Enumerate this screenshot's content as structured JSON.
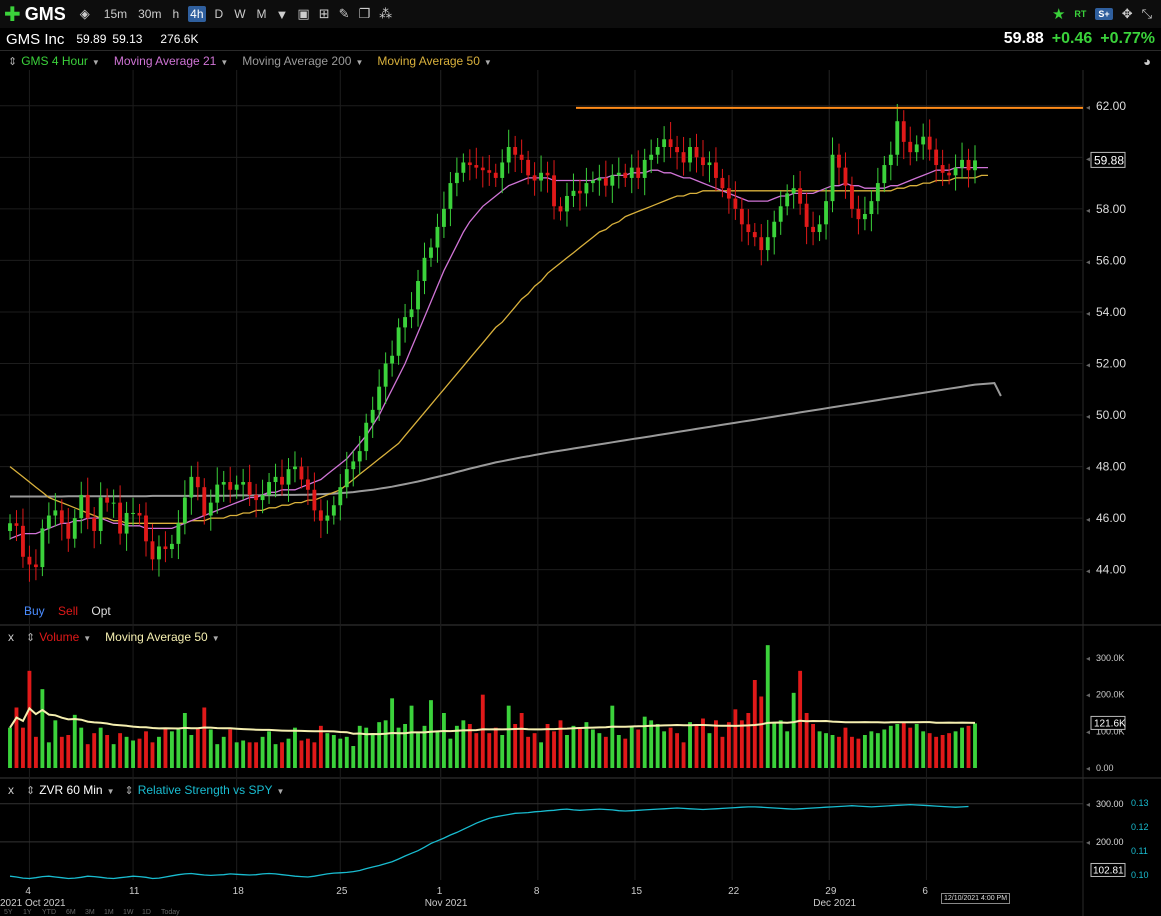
{
  "toolbar": {
    "ticker": "GMS",
    "timeframes": [
      "15m",
      "30m",
      "h",
      "4h",
      "D",
      "W",
      "M"
    ],
    "active_timeframe": "4h",
    "right_icons": [
      "star-icon",
      "rt-badge-icon",
      "s-plus-icon",
      "move-icon",
      "expand-icon"
    ],
    "rt_label": "RT",
    "s_label": "S+"
  },
  "quote": {
    "company": "GMS Inc",
    "high": "59.89",
    "low": "59.13",
    "volume": "276.6K",
    "last": "59.88",
    "change": "+0.46",
    "change_pct": "+0.77%"
  },
  "legend": {
    "series": "GMS 4 Hour",
    "ma21": "Moving Average 21",
    "ma200": "Moving Average 200",
    "ma50": "Moving Average 50"
  },
  "colors": {
    "up": "#3bd23b",
    "down": "#e01919",
    "ma21": "#d074d6",
    "ma50": "#d9b13c",
    "ma200": "#9a9a9a",
    "resistance": "#ff8c1a",
    "rs_line": "#19bcd0",
    "volume_ma": "#f5efb0"
  },
  "bso": {
    "buy": "Buy",
    "sell": "Sell",
    "opt": "Opt"
  },
  "volume_panel": {
    "close": "x",
    "label": "Volume",
    "ma_label": "Moving Average 50",
    "last_label": "121.6K"
  },
  "rs_panel": {
    "close": "x",
    "label": "ZVR 60 Min",
    "rs_label": "Relative Strength vs SPY",
    "last_label": "102.81"
  },
  "timestamp": "12/10/2021 4:00 PM",
  "chart_data": [
    {
      "type": "candlestick",
      "title": "GMS 4 Hour",
      "y_ticks": [
        "62.00",
        "60.00",
        "58.00",
        "56.00",
        "54.00",
        "52.00",
        "50.00",
        "48.00",
        "46.00",
        "44.00"
      ],
      "y_range": [
        42.9,
        63.0
      ],
      "last_price_label": "59.88",
      "resistance_level": 61.92,
      "x_ticks": [
        {
          "label": "2021 Oct 2021",
          "idx": 0
        },
        {
          "label": "4",
          "idx": 3
        },
        {
          "label": "11",
          "idx": 19
        },
        {
          "label": "18",
          "idx": 35
        },
        {
          "label": "25",
          "idx": 51
        },
        {
          "label": "1",
          "idx": 66.5
        },
        {
          "label": "Nov 2021",
          "idx": 66.5
        },
        {
          "label": "8",
          "idx": 81.5
        },
        {
          "label": "15",
          "idx": 96.5
        },
        {
          "label": "22",
          "idx": 111.5
        },
        {
          "label": "29",
          "idx": 126.5
        },
        {
          "label": "Dec 2021",
          "idx": 126.5
        },
        {
          "label": "6",
          "idx": 141.5
        }
      ],
      "bottom_zoom_labels": [
        "5Y",
        "1Y",
        "YTD",
        "6M",
        "3M",
        "1M",
        "1W",
        "1D",
        "Today"
      ],
      "closes": [
        45.8,
        45.7,
        44.5,
        44.2,
        44.1,
        45.6,
        46.1,
        46.3,
        45.8,
        45.2,
        46.0,
        46.9,
        46.0,
        45.5,
        46.8,
        46.6,
        46.6,
        45.4,
        46.2,
        46.2,
        46.1,
        45.1,
        44.4,
        44.9,
        44.8,
        45.0,
        45.8,
        46.8,
        47.6,
        47.2,
        46.1,
        46.6,
        47.3,
        47.4,
        47.1,
        47.3,
        47.4,
        46.9,
        46.7,
        46.9,
        47.4,
        47.6,
        47.3,
        47.9,
        48.0,
        47.5,
        47.1,
        46.3,
        45.9,
        46.1,
        46.5,
        47.2,
        47.9,
        48.2,
        48.6,
        49.7,
        50.2,
        51.1,
        52.0,
        52.3,
        53.4,
        53.8,
        54.1,
        55.2,
        56.1,
        56.5,
        57.3,
        58.0,
        59.0,
        59.4,
        59.8,
        59.7,
        59.6,
        59.5,
        59.4,
        59.2,
        59.8,
        60.4,
        60.1,
        59.9,
        59.3,
        59.1,
        59.4,
        59.3,
        58.1,
        57.9,
        58.5,
        58.7,
        58.6,
        59.0,
        59.1,
        59.2,
        58.9,
        59.3,
        59.4,
        59.2,
        59.6,
        59.2,
        59.9,
        60.1,
        60.4,
        60.7,
        60.4,
        60.2,
        59.8,
        60.4,
        60.0,
        59.7,
        59.8,
        59.2,
        58.8,
        58.4,
        58.0,
        57.4,
        57.1,
        56.9,
        56.4,
        56.9,
        57.5,
        58.1,
        58.6,
        58.8,
        58.2,
        57.3,
        57.1,
        57.4,
        58.3,
        60.1,
        59.6,
        58.9,
        58.0,
        57.6,
        57.8,
        58.3,
        59.0,
        59.7,
        60.1,
        61.4,
        60.6,
        60.2,
        60.5,
        60.8,
        60.3,
        59.7,
        59.4,
        59.3,
        59.6,
        59.9,
        59.5,
        59.88
      ],
      "ma21": [
        45.2,
        45.3,
        45.4,
        45.4,
        45.4,
        45.5,
        45.6,
        45.7,
        45.8,
        45.8,
        45.9,
        45.9,
        46.0,
        46.0,
        46.0,
        45.9,
        45.8,
        45.8,
        45.7,
        45.7,
        45.7,
        45.6,
        45.6,
        45.6,
        45.6,
        45.6,
        45.7,
        45.8,
        45.9,
        46.0,
        46.1,
        46.2,
        46.3,
        46.4,
        46.5,
        46.6,
        46.7,
        46.8,
        46.8,
        46.9,
        47.0,
        47.0,
        47.1,
        47.1,
        47.1,
        47.2,
        47.3,
        47.4,
        47.5,
        47.7,
        47.9,
        48.1,
        48.3,
        48.6,
        48.9,
        49.2,
        49.6,
        50.0,
        50.5,
        51.0,
        51.5,
        52.0,
        52.6,
        53.2,
        53.8,
        54.4,
        55.0,
        55.6,
        56.1,
        56.6,
        57.1,
        57.5,
        57.8,
        58.1,
        58.3,
        58.5,
        58.7,
        58.9,
        59.0,
        59.1,
        59.2,
        59.2,
        59.2,
        59.2,
        59.1,
        59.1,
        59.1,
        59.1,
        59.1,
        59.1,
        59.1,
        59.2,
        59.2,
        59.3,
        59.3,
        59.3,
        59.4,
        59.4,
        59.4,
        59.5,
        59.5,
        59.4,
        59.4,
        59.3,
        59.2,
        59.2,
        59.1,
        59.0,
        58.9,
        58.8,
        58.7,
        58.6,
        58.5,
        58.4,
        58.3,
        58.3,
        58.3,
        58.3,
        58.4,
        58.5,
        58.5,
        58.6,
        58.6,
        58.6,
        58.6,
        58.7,
        58.8,
        58.9,
        58.9,
        59.0,
        58.9,
        58.9,
        58.8,
        58.8,
        58.8,
        58.8,
        58.9,
        58.9,
        59.0,
        59.1,
        59.2,
        59.3,
        59.4,
        59.5,
        59.5,
        59.5,
        59.6,
        59.6,
        59.6,
        59.6,
        59.6,
        59.6
      ],
      "ma50": [
        48.0,
        47.8,
        47.6,
        47.4,
        47.2,
        47.0,
        46.8,
        46.7,
        46.6,
        46.5,
        46.4,
        46.3,
        46.2,
        46.1,
        46.0,
        46.0,
        45.9,
        45.9,
        45.8,
        45.8,
        45.8,
        45.8,
        45.8,
        45.8,
        45.8,
        45.8,
        45.8,
        45.8,
        45.9,
        45.9,
        45.9,
        46.0,
        46.0,
        46.0,
        46.1,
        46.1,
        46.2,
        46.2,
        46.3,
        46.3,
        46.4,
        46.4,
        46.5,
        46.5,
        46.6,
        46.6,
        46.7,
        46.7,
        46.8,
        46.9,
        47.0,
        47.1,
        47.3,
        47.5,
        47.7,
        47.9,
        48.1,
        48.3,
        48.5,
        48.7,
        48.9,
        49.2,
        49.5,
        49.8,
        50.1,
        50.4,
        50.7,
        51.0,
        51.3,
        51.6,
        51.9,
        52.2,
        52.5,
        52.8,
        53.1,
        53.4,
        53.6,
        53.9,
        54.2,
        54.5,
        54.7,
        55.0,
        55.2,
        55.5,
        55.7,
        55.9,
        56.1,
        56.3,
        56.5,
        56.7,
        56.9,
        57.1,
        57.2,
        57.4,
        57.5,
        57.7,
        57.8,
        57.9,
        58.0,
        58.1,
        58.2,
        58.3,
        58.4,
        58.5,
        58.5,
        58.6,
        58.6,
        58.7,
        58.7,
        58.7,
        58.7,
        58.7,
        58.7,
        58.7,
        58.7,
        58.7,
        58.7,
        58.7,
        58.7,
        58.7,
        58.7,
        58.7,
        58.7,
        58.7,
        58.7,
        58.7,
        58.7,
        58.7,
        58.7,
        58.7,
        58.7,
        58.7,
        58.7,
        58.7,
        58.7,
        58.7,
        58.7,
        58.8,
        58.8,
        58.9,
        58.9,
        59.0,
        59.0,
        59.1,
        59.1,
        59.1,
        59.2,
        59.2,
        59.2,
        59.2,
        59.3,
        59.3
      ],
      "ma200": [
        46.84,
        46.84,
        46.84,
        46.84,
        46.84,
        46.84,
        46.84,
        46.84,
        46.84,
        46.85,
        46.85,
        46.85,
        46.85,
        46.85,
        46.85,
        46.85,
        46.85,
        46.85,
        46.85,
        46.85,
        46.85,
        46.85,
        46.86,
        46.86,
        46.86,
        46.86,
        46.86,
        46.86,
        46.86,
        46.86,
        46.87,
        46.87,
        46.87,
        46.87,
        46.87,
        46.88,
        46.88,
        46.88,
        46.88,
        46.89,
        46.89,
        46.89,
        46.9,
        46.9,
        46.9,
        46.91,
        46.91,
        46.92,
        46.93,
        46.94,
        46.95,
        46.97,
        46.99,
        47.01,
        47.04,
        47.07,
        47.1,
        47.14,
        47.18,
        47.22,
        47.27,
        47.32,
        47.37,
        47.42,
        47.48,
        47.54,
        47.6,
        47.66,
        47.72,
        47.79,
        47.85,
        47.92,
        47.98,
        48.04,
        48.1,
        48.16,
        48.21,
        48.26,
        48.31,
        48.36,
        48.4,
        48.45,
        48.49,
        48.54,
        48.58,
        48.62,
        48.66,
        48.7,
        48.74,
        48.78,
        48.82,
        48.86,
        48.9,
        48.94,
        48.98,
        49.02,
        49.06,
        49.1,
        49.14,
        49.18,
        49.22,
        49.26,
        49.3,
        49.34,
        49.38,
        49.42,
        49.46,
        49.5,
        49.54,
        49.58,
        49.62,
        49.66,
        49.7,
        49.74,
        49.78,
        49.82,
        49.86,
        49.9,
        49.94,
        49.98,
        50.02,
        50.06,
        50.1,
        50.14,
        50.18,
        50.22,
        50.26,
        50.3,
        50.34,
        50.38,
        50.42,
        50.46,
        50.5,
        50.54,
        50.58,
        50.62,
        50.66,
        50.7,
        50.74,
        50.78,
        50.82,
        50.86,
        50.9,
        50.94,
        50.98,
        51.02,
        51.06,
        51.1,
        51.14,
        51.18,
        51.2,
        51.22,
        51.24,
        50.74
      ]
    },
    {
      "type": "bar",
      "title": "Volume",
      "y_ticks": [
        "300.0K",
        "200.0K",
        "100.0K",
        "0.00"
      ],
      "y_range": [
        0,
        330000
      ],
      "volume": [
        110,
        165,
        110,
        265,
        85,
        215,
        70,
        130,
        85,
        90,
        145,
        110,
        65,
        95,
        110,
        90,
        65,
        95,
        85,
        75,
        80,
        100,
        70,
        85,
        110,
        100,
        105,
        150,
        90,
        110,
        165,
        105,
        65,
        85,
        105,
        70,
        75,
        70,
        70,
        85,
        100,
        65,
        70,
        80,
        110,
        75,
        80,
        70,
        115,
        95,
        90,
        80,
        85,
        60,
        115,
        110,
        95,
        125,
        130,
        190,
        110,
        120,
        170,
        95,
        115,
        185,
        100,
        150,
        80,
        115,
        130,
        120,
        95,
        200,
        95,
        110,
        90,
        170,
        120,
        150,
        85,
        95,
        70,
        120,
        100,
        130,
        90,
        115,
        110,
        125,
        105,
        95,
        85,
        170,
        90,
        80,
        115,
        105,
        140,
        130,
        120,
        100,
        110,
        95,
        70,
        125,
        120,
        135,
        95,
        130,
        85,
        125,
        160,
        130,
        150,
        240,
        195,
        335,
        125,
        130,
        100,
        205,
        265,
        150,
        120,
        100,
        95,
        90,
        85,
        110,
        85,
        80,
        90,
        100,
        95,
        105,
        115,
        120,
        125,
        110,
        120,
        100,
        95,
        85,
        90,
        95,
        100,
        110,
        115,
        121.6
      ]
    },
    {
      "type": "line",
      "title": "Relative Strength vs SPY",
      "y_ticks": [
        "300.00",
        "200.00"
      ],
      "y_range": [
        100,
        310
      ],
      "right_labels": [
        "0.13",
        "0.12",
        "0.11",
        "0.10"
      ],
      "rs": [
        110,
        108,
        105,
        104,
        106,
        109,
        110,
        108,
        106,
        104,
        105,
        107,
        110,
        109,
        107,
        105,
        104,
        106,
        108,
        110,
        109,
        107,
        104,
        105,
        108,
        111,
        114,
        116,
        117,
        115,
        113,
        112,
        113,
        114,
        116,
        115,
        114,
        113,
        114,
        116,
        117,
        116,
        114,
        112,
        110,
        109,
        108,
        110,
        113,
        116,
        118,
        119,
        120,
        122,
        125,
        130,
        134,
        138,
        143,
        148,
        155,
        163,
        170,
        177,
        186,
        196,
        203,
        210,
        218,
        225,
        233,
        241,
        249,
        256,
        262,
        266,
        269,
        272,
        275,
        276,
        277,
        279,
        280,
        282,
        283,
        285,
        286,
        284,
        283,
        284,
        285,
        286,
        285,
        284,
        282,
        281,
        282,
        283,
        284,
        285,
        286,
        287,
        288,
        289,
        288,
        287,
        286,
        285,
        286,
        287,
        288,
        289,
        290,
        291,
        292,
        292,
        291,
        290,
        289,
        288,
        287,
        286,
        287,
        288,
        289,
        290,
        291,
        292,
        293,
        294,
        295,
        294,
        293,
        292,
        293,
        294,
        295,
        296,
        297,
        298,
        297,
        296,
        295,
        294,
        293,
        292,
        291,
        292,
        293,
        102.81
      ]
    }
  ]
}
